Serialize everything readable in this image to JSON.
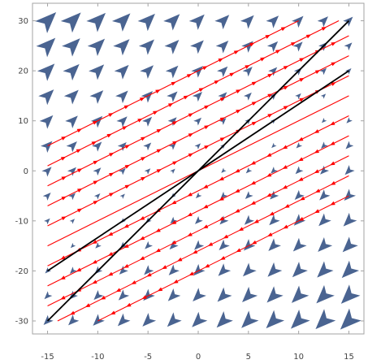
{
  "chart_data": {
    "type": "vector-field",
    "title": "",
    "xlabel": "",
    "ylabel": "",
    "xlim": [
      -16.5,
      16.5
    ],
    "ylim": [
      -32.6,
      33.5
    ],
    "x_ticks": [
      -15,
      -10,
      -5,
      0,
      5,
      10,
      15
    ],
    "y_ticks": [
      -30,
      -20,
      -10,
      0,
      10,
      20,
      30
    ],
    "x_tick_labels": [
      "-15",
      "-10",
      "-5",
      "0",
      "5",
      "10",
      "15"
    ],
    "y_tick_labels": [
      "-30",
      "-20",
      "-10",
      "0",
      "10",
      "20",
      "30"
    ],
    "grid": false,
    "legend": "none",
    "vector_field": {
      "x_range": [
        -15,
        15
      ],
      "y_range": [
        -30,
        30
      ],
      "x_step": 2.5,
      "y_step": 5,
      "field": {
        "dx": "y - x",
        "dy": "y - x"
      },
      "color": "#4a6491"
    },
    "stream_lines": {
      "direction": [
        1,
        1
      ],
      "offsets": [
        -20,
        -16,
        -12,
        -8,
        -4,
        0,
        4,
        8,
        12,
        16,
        20
      ],
      "x_range": [
        -15,
        15
      ],
      "y_range": [
        -30,
        30
      ],
      "color": "#ff0000"
    },
    "lines": [
      {
        "points": [
          [
            -15,
            -30
          ],
          [
            15,
            30
          ]
        ],
        "color": "#000000"
      },
      {
        "points": [
          [
            -15,
            -20
          ],
          [
            15,
            20
          ]
        ],
        "color": "#000000"
      }
    ]
  }
}
